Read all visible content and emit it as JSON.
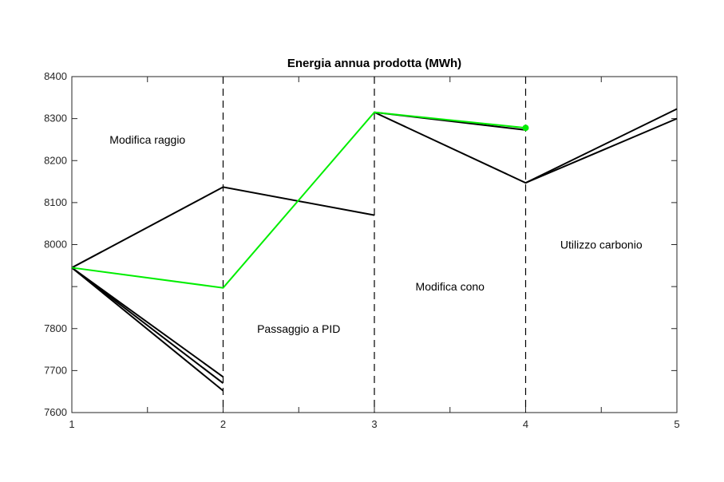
{
  "chart_data": {
    "type": "line",
    "title": "Energia annua prodotta (MWh)",
    "xlabel": "",
    "ylabel": "",
    "xlim": [
      1,
      5
    ],
    "ylim": [
      7600,
      8400
    ],
    "xticks": [
      1,
      2,
      3,
      4,
      5
    ],
    "yticks": [
      7600,
      7700,
      7800,
      8000,
      8100,
      8200,
      8300,
      8400
    ],
    "yticks_all": [
      7600,
      7700,
      7800,
      7900,
      8000,
      8100,
      8200,
      8300,
      8400
    ],
    "grid": false,
    "phase_dividers": [
      2,
      3,
      4
    ],
    "annotations": [
      {
        "text": "Modifica raggio",
        "x": 1.5,
        "y": 8250
      },
      {
        "text": "Passaggio a PID",
        "x": 2.5,
        "y": 7800
      },
      {
        "text": "Modifica cono",
        "x": 3.5,
        "y": 7900
      },
      {
        "text": "Utilizzo carbonio",
        "x": 4.5,
        "y": 8000
      }
    ],
    "series": [
      {
        "color": "#000000",
        "x": [
          1,
          2,
          3
        ],
        "y": [
          7945,
          8137,
          8070
        ]
      },
      {
        "color": "#000000",
        "x": [
          1,
          2
        ],
        "y": [
          7945,
          7685
        ]
      },
      {
        "color": "#000000",
        "x": [
          1,
          2
        ],
        "y": [
          7945,
          7670
        ]
      },
      {
        "color": "#000000",
        "x": [
          1,
          2
        ],
        "y": [
          7945,
          7652
        ]
      },
      {
        "color": "#000000",
        "x": [
          3,
          4,
          5
        ],
        "y": [
          8315,
          8147,
          8323
        ]
      },
      {
        "color": "#000000",
        "x": [
          3,
          4
        ],
        "y": [
          8315,
          8273
        ]
      },
      {
        "color": "#000000",
        "x": [
          4,
          5
        ],
        "y": [
          8147,
          8300
        ]
      },
      {
        "color": "#00ee00",
        "x": [
          1,
          2,
          3,
          4
        ],
        "y": [
          7945,
          7897,
          8315,
          8278
        ],
        "marker_last": true
      }
    ]
  }
}
